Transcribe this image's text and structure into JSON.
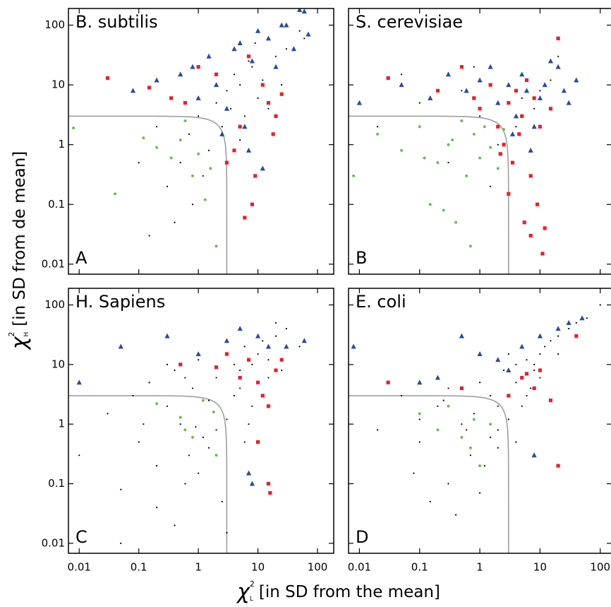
{
  "xlabel": {
    "symbol": "χ",
    "sup": "2",
    "sub": "L",
    "text": "[in SD from the mean]"
  },
  "ylabel": {
    "symbol": "χ",
    "sup": "2",
    "sub": "H",
    "text": "[in SD from de mean]"
  },
  "chart_data": [
    {
      "type": "scatter",
      "title": "B. subtilis",
      "panel_label": "A",
      "log_x": true,
      "log_y": true,
      "xlim": [
        0.0066,
        187
      ],
      "ylim": [
        0.0068,
        190
      ],
      "xticks": [
        0.01,
        0.1,
        1,
        10,
        100
      ],
      "yticks": [
        0.01,
        0.1,
        1,
        10,
        100
      ],
      "xtick_labels": false,
      "ytick_labels": true,
      "threshold": 3,
      "threshold_color": "#999999",
      "series": [
        {
          "color": "#000000",
          "marker": "dot",
          "x": [
            0.2,
            0.5,
            1,
            2,
            3,
            5,
            8,
            10,
            15,
            20,
            0.3,
            0.7,
            1.5,
            4,
            6,
            12,
            30,
            50,
            0.1,
            0.4,
            0.8,
            2.5,
            5,
            7,
            25,
            60,
            1.2,
            3.5,
            0.15,
            9
          ],
          "values": [
            2,
            0.5,
            3,
            5,
            8,
            10,
            20,
            6,
            4,
            30,
            0.2,
            1.5,
            0.8,
            15,
            3,
            12,
            40,
            80,
            0.5,
            0.05,
            0.1,
            2,
            1.2,
            25,
            10,
            60,
            0.3,
            4,
            0.03,
            50
          ]
        },
        {
          "color": "#6abf45",
          "marker": "circle",
          "x": [
            0.008,
            0.04,
            0.12,
            0.2,
            0.35,
            0.5,
            0.8,
            1,
            1.3,
            2,
            0.6,
            1.6
          ],
          "values": [
            1.9,
            0.15,
            1.3,
            0.9,
            0.6,
            1.2,
            0.3,
            0.7,
            0.12,
            0.02,
            2.5,
            0.4
          ]
        },
        {
          "color": "#e8202a",
          "marker": "square",
          "x": [
            0.03,
            0.15,
            0.35,
            0.6,
            1,
            2,
            3,
            4,
            5,
            7,
            9,
            12,
            15,
            20,
            25,
            8,
            6,
            18
          ],
          "values": [
            13,
            9,
            6,
            5,
            20,
            15,
            0.5,
            0.8,
            2,
            30,
            0.3,
            10,
            5,
            3,
            7,
            0.1,
            0.06,
            1.5
          ]
        },
        {
          "color": "#2b4aa0",
          "marker": "triangle",
          "x": [
            0.08,
            0.2,
            0.5,
            0.8,
            1,
            1.5,
            2,
            3,
            4,
            5,
            6,
            8,
            10,
            15,
            20,
            30,
            40,
            50,
            60,
            70,
            2.5,
            7,
            12,
            25
          ],
          "values": [
            8,
            12,
            15,
            20,
            6,
            30,
            10,
            4,
            40,
            50,
            2,
            25,
            80,
            60,
            20,
            100,
            40,
            180,
            170,
            70,
            1.5,
            0.8,
            0.4,
            100
          ]
        }
      ]
    },
    {
      "type": "scatter",
      "title": "S. cerevisiae",
      "panel_label": "B",
      "log_x": true,
      "log_y": true,
      "xlim": [
        0.0066,
        155
      ],
      "ylim": [
        0.0068,
        190
      ],
      "xticks": [
        0.01,
        0.1,
        1,
        10,
        100
      ],
      "yticks": [
        0.01,
        0.1,
        1,
        10,
        100
      ],
      "xtick_labels": false,
      "ytick_labels": false,
      "threshold": 3,
      "threshold_color": "#999999",
      "series": [
        {
          "color": "#000000",
          "marker": "dot",
          "x": [
            0.02,
            0.1,
            0.3,
            0.5,
            1,
            2,
            3,
            5,
            8,
            15,
            0.05,
            0.8,
            1.5,
            4,
            10,
            20
          ],
          "values": [
            2,
            5,
            0.5,
            8,
            3,
            1,
            10,
            6,
            4,
            12,
            15,
            20,
            0.2,
            2,
            8,
            30
          ]
        },
        {
          "color": "#6abf45",
          "marker": "circle",
          "x": [
            0.008,
            0.02,
            0.05,
            0.1,
            0.15,
            0.2,
            0.3,
            0.4,
            0.5,
            0.6,
            0.8,
            1,
            1.2,
            1.5,
            2,
            2.5,
            0.25,
            0.7,
            0.12,
            0.35
          ],
          "values": [
            0.3,
            1.5,
            0.8,
            2,
            0.1,
            0.5,
            1,
            0.05,
            2.5,
            0.3,
            1.5,
            0.6,
            2,
            0.9,
            0.4,
            1.8,
            0.08,
            0.02,
            0.6,
            1.2
          ]
        },
        {
          "color": "#e8202a",
          "marker": "square",
          "x": [
            0.03,
            0.2,
            0.5,
            0.8,
            1,
            1.5,
            2,
            2.5,
            3,
            3.5,
            4,
            5,
            6,
            7,
            8,
            9,
            10,
            12,
            15,
            20,
            2.2,
            4.5,
            3,
            5.5,
            7,
            11
          ],
          "values": [
            13,
            8,
            20,
            6,
            4,
            10,
            2,
            1,
            5,
            0.5,
            8,
            3,
            12,
            0.3,
            6,
            0.1,
            2,
            0.04,
            4,
            60,
            0.7,
            1.5,
            0.15,
            0.05,
            0.03,
            0.015
          ]
        },
        {
          "color": "#2b4aa0",
          "marker": "triangle",
          "x": [
            0.01,
            0.05,
            0.15,
            0.3,
            0.6,
            1,
            1.5,
            2,
            3,
            4,
            5,
            6,
            8,
            10,
            12,
            15,
            20,
            25,
            30,
            40,
            3.5,
            7
          ],
          "values": [
            5,
            10,
            6,
            15,
            8,
            12,
            20,
            5,
            10,
            3,
            15,
            8,
            2,
            6,
            10,
            25,
            20,
            8,
            5,
            12,
            1.5,
            0.8
          ]
        }
      ]
    },
    {
      "type": "scatter",
      "title": "H. Sapiens",
      "panel_label": "C",
      "log_x": true,
      "log_y": true,
      "xlim": [
        0.0066,
        187
      ],
      "ylim": [
        0.0068,
        190
      ],
      "xticks": [
        0.01,
        0.1,
        1,
        10,
        100
      ],
      "yticks": [
        0.01,
        0.1,
        1,
        10,
        100
      ],
      "xtick_labels": true,
      "ytick_labels": true,
      "threshold": 3,
      "threshold_color": "#999999",
      "series": [
        {
          "color": "#000000",
          "marker": "dot",
          "x": [
            0.01,
            0.03,
            0.05,
            0.08,
            0.1,
            0.15,
            0.2,
            0.3,
            0.4,
            0.5,
            0.6,
            0.8,
            1,
            1.2,
            1.5,
            2,
            2.5,
            3,
            4,
            5,
            6,
            7,
            8,
            10,
            12,
            15,
            20,
            25,
            30,
            50,
            0.2,
            0.4,
            0.7,
            1,
            2,
            3,
            5,
            8,
            0.3,
            0.6,
            1.5,
            3,
            6,
            10,
            15,
            0.05,
            0.12,
            0.9,
            4,
            20
          ],
          "values": [
            0.3,
            1.5,
            0.08,
            3,
            0.5,
            5,
            0.2,
            2,
            8,
            1,
            0.1,
            4,
            12,
            0.6,
            2.5,
            6,
            0.05,
            15,
            3,
            8,
            20,
            1,
            10,
            5,
            25,
            12,
            30,
            8,
            40,
            20,
            0.04,
            0.02,
            0.3,
            0.15,
            0.8,
            1.2,
            4,
            2,
            10,
            6,
            0.4,
            0.015,
            0.5,
            15,
            6,
            0.01,
            1,
            0.9,
            10,
            50
          ]
        },
        {
          "color": "#6abf45",
          "marker": "circle",
          "x": [
            0.2,
            0.5,
            0.8,
            1.2,
            1.8,
            2,
            0.6
          ],
          "values": [
            2.2,
            1.3,
            0.6,
            2.5,
            1.6,
            0.3,
            0.8
          ]
        },
        {
          "color": "#e8202a",
          "marker": "square",
          "x": [
            0.5,
            2,
            3,
            5,
            7,
            10,
            12,
            15,
            20,
            25,
            10,
            15,
            16
          ],
          "values": [
            10,
            9,
            15,
            6,
            12,
            5,
            3,
            2,
            8,
            12,
            0.5,
            0.1,
            0.07
          ]
        },
        {
          "color": "#2b4aa0",
          "marker": "triangle",
          "x": [
            0.01,
            0.05,
            0.3,
            1,
            3,
            5,
            10,
            15,
            30,
            60,
            7,
            8
          ],
          "values": [
            5,
            20,
            30,
            15,
            25,
            40,
            30,
            20,
            20,
            25,
            0.15,
            0.1
          ]
        }
      ]
    },
    {
      "type": "scatter",
      "title": "E. coli",
      "panel_label": "D",
      "log_x": true,
      "log_y": true,
      "xlim": [
        0.0066,
        155
      ],
      "ylim": [
        0.0068,
        190
      ],
      "xticks": [
        0.01,
        0.1,
        1,
        10,
        100
      ],
      "yticks": [
        0.01,
        0.1,
        1,
        10,
        100
      ],
      "xtick_labels": true,
      "ytick_labels": false,
      "threshold": 3,
      "threshold_color": "#999999",
      "series": [
        {
          "color": "#000000",
          "marker": "dot",
          "x": [
            0.02,
            0.05,
            0.1,
            0.2,
            0.3,
            0.5,
            0.7,
            1,
            1.5,
            2,
            2.5,
            3,
            4,
            5,
            6,
            8,
            10,
            12,
            15,
            20,
            30,
            40,
            60,
            0.15,
            0.4,
            0.8,
            1.2,
            2,
            3,
            4,
            6,
            8,
            0.3,
            0.6,
            1,
            2,
            3,
            5,
            10,
            20,
            0.1,
            0.5,
            1.5,
            4,
            7,
            100,
            0.08,
            0.25
          ],
          "values": [
            0.8,
            3,
            0.5,
            2,
            0.1,
            1,
            0.3,
            5,
            0.6,
            2,
            8,
            3,
            10,
            6,
            12,
            8,
            15,
            20,
            25,
            30,
            40,
            50,
            60,
            0.05,
            0.03,
            1.5,
            0.2,
            0.8,
            1.2,
            5,
            3,
            10,
            4,
            0.8,
            0.07,
            0.4,
            15,
            2,
            6,
            15,
            1.2,
            0.6,
            3,
            0.5,
            4,
            100,
            0.15,
            2.5
          ]
        },
        {
          "color": "#6abf45",
          "marker": "circle",
          "x": [
            0.1,
            0.3,
            0.5,
            0.8,
            1,
            1.5,
            0.2,
            0.7
          ],
          "values": [
            1.5,
            2,
            0.6,
            1.2,
            0.2,
            1,
            0.8,
            0.4
          ]
        },
        {
          "color": "#e8202a",
          "marker": "square",
          "x": [
            0.03,
            0.5,
            3,
            5,
            8,
            10,
            15,
            20,
            40,
            6
          ],
          "values": [
            5,
            4,
            3,
            6,
            4,
            8,
            2.5,
            0.2,
            30,
            7
          ]
        },
        {
          "color": "#2b4aa0",
          "marker": "triangle",
          "x": [
            0.008,
            0.1,
            0.2,
            0.5,
            1,
            2,
            5,
            10,
            20,
            30,
            50,
            8,
            3
          ],
          "values": [
            20,
            5,
            6,
            30,
            15,
            12,
            20,
            30,
            40,
            50,
            60,
            0.3,
            8
          ]
        }
      ]
    }
  ]
}
